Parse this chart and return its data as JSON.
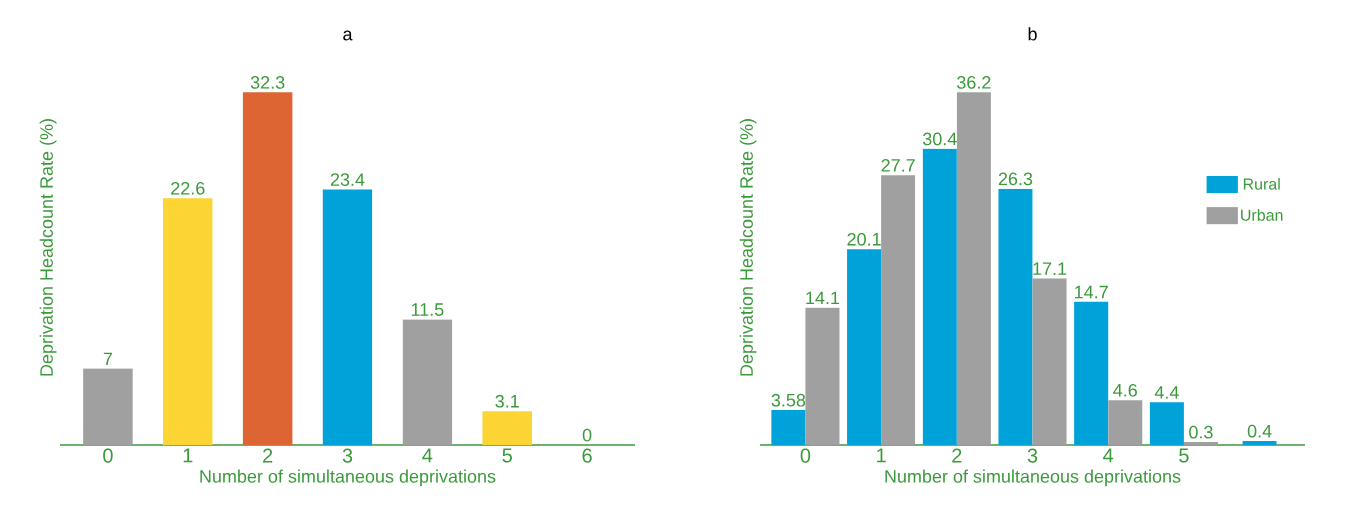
{
  "chart_data": [
    {
      "type": "bar",
      "title": "a",
      "xlabel": "Number of simultaneous deprivations",
      "ylabel": "Deprivation Headcount Rate (%)",
      "categories": [
        "0",
        "1",
        "2",
        "3",
        "4",
        "5",
        "6"
      ],
      "values": [
        7,
        22.6,
        32.3,
        23.4,
        11.5,
        3.1,
        0
      ],
      "colors": [
        "#a0a0a0",
        "#fcd535",
        "#dd6433",
        "#00a3d9",
        "#a0a0a0",
        "#fcd535",
        "#fcd535"
      ],
      "data_labels": true,
      "tick_labels": "x"
    },
    {
      "type": "bar",
      "title": "b",
      "xlabel": "Number of simultaneous deprivations",
      "ylabel": "Deprivation Headcount Rate (%)",
      "categories": [
        "0",
        "1",
        "2",
        "3",
        "4",
        "5",
        null
      ],
      "series": [
        {
          "name": "Rural",
          "color": "#00a3d9",
          "values": [
            3.58,
            20.1,
            30.4,
            26.3,
            14.7,
            4.4,
            0.4
          ]
        },
        {
          "name": "Urban",
          "color": "#a0a0a0",
          "values": [
            14.1,
            27.7,
            36.2,
            17.1,
            4.6,
            0.3,
            null
          ]
        }
      ],
      "data_labels": true,
      "legend": "right",
      "tick_labels": "x"
    }
  ]
}
